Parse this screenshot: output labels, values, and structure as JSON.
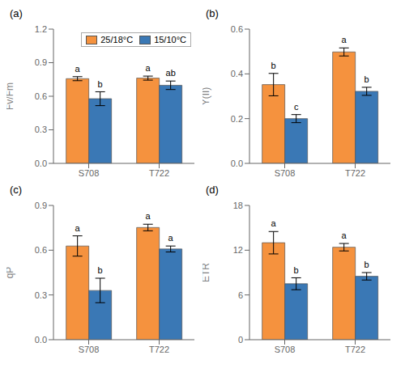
{
  "chart_data": [
    {
      "type": "bar",
      "title": "(a)",
      "y_label": "Fv/Fm",
      "categories": [
        "S708",
        "T722"
      ],
      "ylim": [
        0.0,
        1.2
      ],
      "yticks": [
        {
          "value": 0.0,
          "label": "0.0"
        },
        0.3,
        0.6,
        0.9,
        1.2
      ],
      "legend": "upper right",
      "series": [
        {
          "name": "25/18°C",
          "color": "#F5923E",
          "values": [
            0.757,
            0.762
          ],
          "errors": [
            0.018,
            0.018
          ],
          "annotations": [
            "a",
            "a"
          ]
        },
        {
          "name": "15/10°C",
          "color": "#3A78B5",
          "values": [
            0.578,
            0.698
          ],
          "errors": [
            0.062,
            0.038
          ],
          "annotations": [
            "b",
            "ab"
          ]
        }
      ]
    },
    {
      "type": "bar",
      "title": "(b)",
      "y_label": "Y(II)",
      "categories": [
        "S708",
        "T722"
      ],
      "ylim": [
        0.0,
        0.6
      ],
      "yticks": [
        {
          "value": 0.0,
          "label": "0.0"
        },
        0.2,
        0.4,
        0.6
      ],
      "series": [
        {
          "name": "25/18°C",
          "color": "#F5923E",
          "values": [
            0.352,
            0.498
          ],
          "errors": [
            0.05,
            0.018
          ],
          "annotations": [
            "b",
            "a"
          ]
        },
        {
          "name": "15/10°C",
          "color": "#3A78B5",
          "values": [
            0.2,
            0.322
          ],
          "errors": [
            0.018,
            0.018
          ],
          "annotations": [
            "c",
            "b"
          ]
        }
      ]
    },
    {
      "type": "bar",
      "title": "(c)",
      "y_label": "qP",
      "categories": [
        "S708",
        "T722"
      ],
      "ylim": [
        0.0,
        0.9
      ],
      "yticks": [
        {
          "value": 0.0,
          "label": "0.0"
        },
        0.3,
        0.6,
        0.9
      ],
      "series": [
        {
          "name": "25/18°C",
          "color": "#F5923E",
          "values": [
            0.628,
            0.752
          ],
          "errors": [
            0.068,
            0.022
          ],
          "annotations": [
            "a",
            "a"
          ]
        },
        {
          "name": "15/10°C",
          "color": "#3A78B5",
          "values": [
            0.33,
            0.608
          ],
          "errors": [
            0.082,
            0.02
          ],
          "annotations": [
            "b",
            "a"
          ]
        }
      ]
    },
    {
      "type": "bar",
      "title": "(d)",
      "y_label": "ETR",
      "categories": [
        "S708",
        "T722"
      ],
      "ylim": [
        0.0,
        18.0
      ],
      "yticks": [
        0,
        6,
        12,
        18
      ],
      "series": [
        {
          "name": "25/18°C",
          "color": "#F5923E",
          "values": [
            13.0,
            12.4
          ],
          "errors": [
            1.5,
            0.5
          ],
          "annotations": [
            "a",
            "a"
          ]
        },
        {
          "name": "15/10°C",
          "color": "#3A78B5",
          "values": [
            7.5,
            8.5
          ],
          "errors": [
            0.8,
            0.5
          ],
          "annotations": [
            "b",
            "b"
          ]
        }
      ]
    }
  ]
}
